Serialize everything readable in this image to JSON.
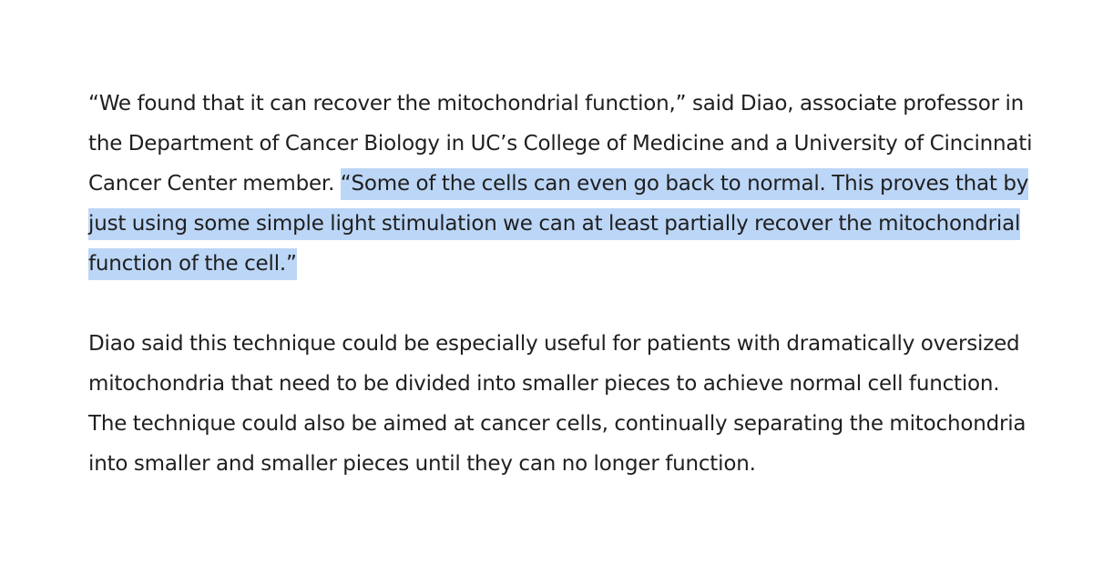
{
  "paragraphs": [
    {
      "text": "“We found that it can recover the mitochondrial function,” said Diao, associate professor in the Department of Cancer Biology in UC’s College of Medicine and a University of Cincinnati Cancer Center member. ",
      "highlighted": "“Some of the cells can even go back to normal. This proves that by just using some simple light stimulation we can at least partially recover the mitochondrial function of the cell.”"
    },
    {
      "text": "Diao said this technique could be especially useful for patients with dramatically oversized mitochondria that need to be divided into smaller pieces to achieve normal cell function. The technique could also be aimed at cancer cells, continually separating the mitochondria into smaller and smaller pieces until they can no longer function."
    }
  ],
  "colors": {
    "text": "#1f1f1f",
    "selection_highlight": "#bcd6f7",
    "background": "#ffffff"
  }
}
